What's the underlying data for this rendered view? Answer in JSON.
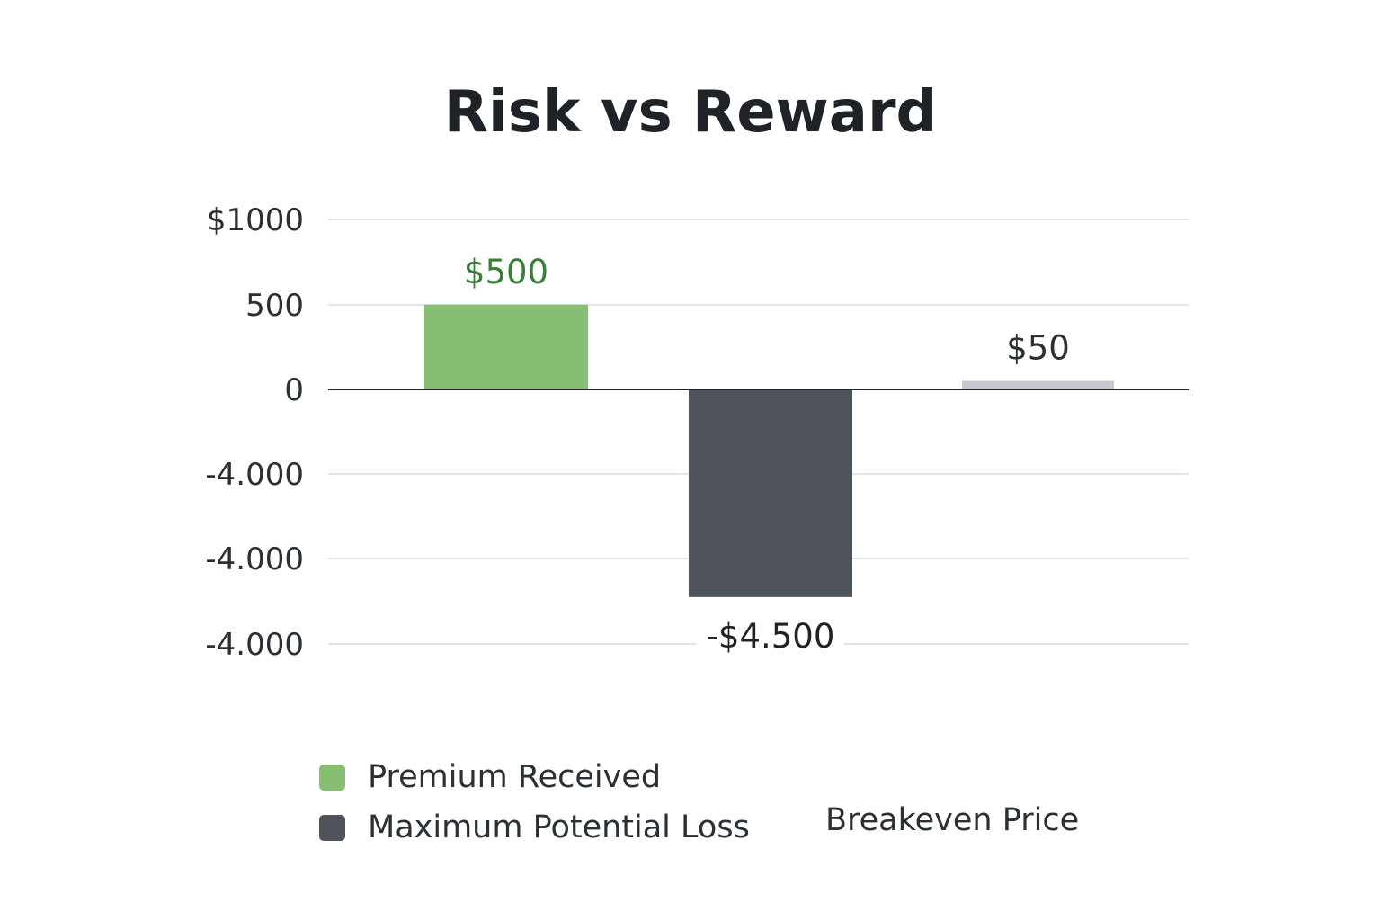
{
  "chart_data": {
    "type": "bar",
    "title": "Risk vs Reward",
    "categories": [
      "Premium Received",
      "Maximum Potential Loss",
      "Breakeven Price"
    ],
    "values": [
      500,
      -4500,
      50
    ],
    "data_labels": [
      "$500",
      "-$4.500",
      "$50"
    ],
    "y_tick_labels": [
      "$1000",
      "500",
      "0",
      "-4.000",
      "-4.000",
      "-4.000"
    ],
    "colors": [
      "#86bf72",
      "#4f545b",
      "#c6c9cd"
    ],
    "label_colors": [
      "#3b7d3a",
      "#1f2328",
      "#2b3035"
    ],
    "legend": [
      {
        "label": "Premium Received",
        "color": "#86bf72"
      },
      {
        "label": "Maximum Potential Loss",
        "color": "#4f545b"
      },
      {
        "label": "Breakeven Price",
        "color": ""
      }
    ],
    "legend_position": "bottom",
    "grid": true
  }
}
